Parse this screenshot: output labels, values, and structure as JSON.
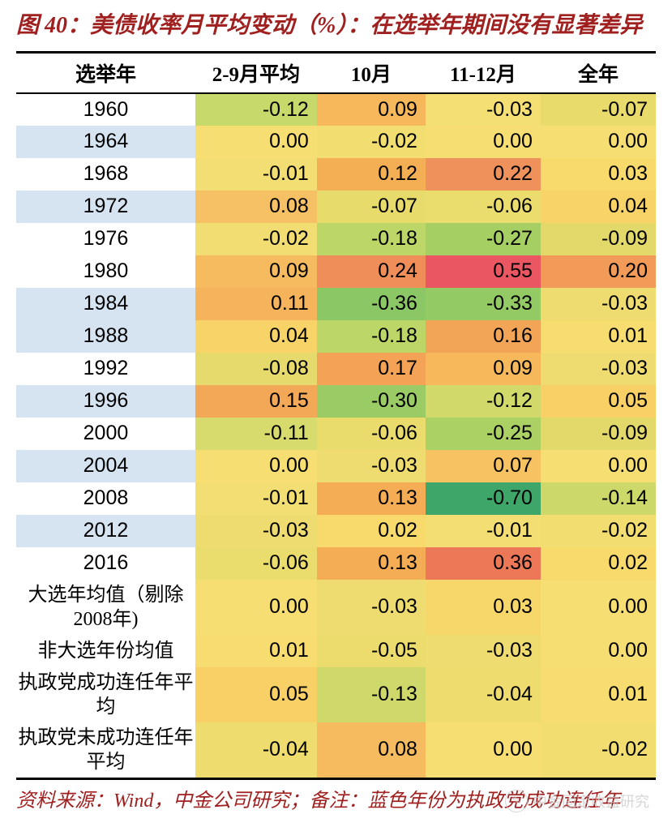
{
  "title": {
    "prefix": "图 40：",
    "text": "美债收率月平均变动（%）：在选举年期间没有显著差异"
  },
  "columns": [
    "选举年",
    "2-9月平均",
    "10月",
    "11-12月",
    "全年"
  ],
  "col_widths": [
    "28%",
    "19%",
    "17%",
    "18%",
    "18%"
  ],
  "header_style": {
    "bg": "#ffffff",
    "text_color": "#000000"
  },
  "palette_note": "heatmap green-yellow-red on data cells; first column alternating blue/white for incumbent re-election years",
  "rows": [
    {
      "label": "1960",
      "label_bg": "#ffffff",
      "cells": [
        {
          "v": "-0.12",
          "bg": "#c7d96a"
        },
        {
          "v": "0.09",
          "bg": "#f6b85a"
        },
        {
          "v": "-0.03",
          "bg": "#f4df74"
        },
        {
          "v": "-0.07",
          "bg": "#e9da6c"
        }
      ]
    },
    {
      "label": "1964",
      "label_bg": "#d6e4f2",
      "cells": [
        {
          "v": "0.00",
          "bg": "#f6de72"
        },
        {
          "v": "-0.02",
          "bg": "#f1dd70"
        },
        {
          "v": "0.00",
          "bg": "#f6de72"
        },
        {
          "v": "0.00",
          "bg": "#f6de72"
        }
      ]
    },
    {
      "label": "1968",
      "label_bg": "#ffffff",
      "cells": [
        {
          "v": "-0.01",
          "bg": "#f3de73"
        },
        {
          "v": "0.12",
          "bg": "#f4af55"
        },
        {
          "v": "0.22",
          "bg": "#ef915a"
        },
        {
          "v": "0.03",
          "bg": "#f8d96c"
        }
      ]
    },
    {
      "label": "1972",
      "label_bg": "#d6e4f2",
      "cells": [
        {
          "v": "0.08",
          "bg": "#f6c064"
        },
        {
          "v": "-0.07",
          "bg": "#e7db6c"
        },
        {
          "v": "-0.06",
          "bg": "#ebdc6e"
        },
        {
          "v": "0.04",
          "bg": "#f8d468"
        }
      ]
    },
    {
      "label": "1976",
      "label_bg": "#ffffff",
      "cells": [
        {
          "v": "-0.02",
          "bg": "#f1dd71"
        },
        {
          "v": "-0.18",
          "bg": "#bdd668"
        },
        {
          "v": "-0.27",
          "bg": "#a6cf63"
        },
        {
          "v": "-0.09",
          "bg": "#e3d96a"
        }
      ]
    },
    {
      "label": "1980",
      "label_bg": "#ffffff",
      "cells": [
        {
          "v": "0.09",
          "bg": "#f6bb5e"
        },
        {
          "v": "0.24",
          "bg": "#ef8e59"
        },
        {
          "v": "0.55",
          "bg": "#ea5662"
        },
        {
          "v": "0.20",
          "bg": "#f29a58"
        }
      ]
    },
    {
      "label": "1984",
      "label_bg": "#d6e4f2",
      "cells": [
        {
          "v": "0.11",
          "bg": "#f5b35b"
        },
        {
          "v": "-0.36",
          "bg": "#8bc764"
        },
        {
          "v": "-0.33",
          "bg": "#94ca64"
        },
        {
          "v": "-0.03",
          "bg": "#efdc70"
        }
      ]
    },
    {
      "label": "1988",
      "label_bg": "#d6e4f2",
      "cells": [
        {
          "v": "0.04",
          "bg": "#f8d468"
        },
        {
          "v": "-0.18",
          "bg": "#bdd668"
        },
        {
          "v": "0.16",
          "bg": "#f3a557"
        },
        {
          "v": "0.01",
          "bg": "#f7dc6f"
        }
      ]
    },
    {
      "label": "1992",
      "label_bg": "#ffffff",
      "cells": [
        {
          "v": "-0.08",
          "bg": "#e5da6b"
        },
        {
          "v": "0.17",
          "bg": "#f3a256"
        },
        {
          "v": "0.09",
          "bg": "#f6b85a"
        },
        {
          "v": "-0.03",
          "bg": "#efdc70"
        }
      ]
    },
    {
      "label": "1996",
      "label_bg": "#d6e4f2",
      "cells": [
        {
          "v": "0.15",
          "bg": "#f3a857"
        },
        {
          "v": "-0.30",
          "bg": "#9acb64"
        },
        {
          "v": "-0.12",
          "bg": "#d2d96b"
        },
        {
          "v": "0.05",
          "bg": "#f8d066"
        }
      ]
    },
    {
      "label": "2000",
      "label_bg": "#ffffff",
      "cells": [
        {
          "v": "-0.11",
          "bg": "#d7da6c"
        },
        {
          "v": "-0.06",
          "bg": "#eadb6d"
        },
        {
          "v": "-0.25",
          "bg": "#abd064"
        },
        {
          "v": "-0.09",
          "bg": "#e3d96a"
        }
      ]
    },
    {
      "label": "2004",
      "label_bg": "#d6e4f2",
      "cells": [
        {
          "v": "0.00",
          "bg": "#f6de72"
        },
        {
          "v": "-0.03",
          "bg": "#efdc70"
        },
        {
          "v": "0.07",
          "bg": "#f7c261"
        },
        {
          "v": "0.00",
          "bg": "#f6de72"
        }
      ]
    },
    {
      "label": "2008",
      "label_bg": "#ffffff",
      "cells": [
        {
          "v": "-0.01",
          "bg": "#f3de73"
        },
        {
          "v": "0.13",
          "bg": "#f4ac55"
        },
        {
          "v": "-0.70",
          "bg": "#3fa66a"
        },
        {
          "v": "-0.14",
          "bg": "#cdd86b"
        }
      ]
    },
    {
      "label": "2012",
      "label_bg": "#d6e4f2",
      "cells": [
        {
          "v": "-0.03",
          "bg": "#efdc70"
        },
        {
          "v": "0.02",
          "bg": "#f7d96c"
        },
        {
          "v": "-0.01",
          "bg": "#f3de73"
        },
        {
          "v": "-0.02",
          "bg": "#f1dd70"
        }
      ]
    },
    {
      "label": "2016",
      "label_bg": "#ffffff",
      "cells": [
        {
          "v": "-0.06",
          "bg": "#ebdc6e"
        },
        {
          "v": "0.13",
          "bg": "#f4ac55"
        },
        {
          "v": "0.36",
          "bg": "#ed7858"
        },
        {
          "v": "0.02",
          "bg": "#f7d96c"
        }
      ]
    },
    {
      "label": "大选年均值（剔除2008年)",
      "label_bg": "#ffffff",
      "summary": true,
      "cells": [
        {
          "v": "0.00",
          "bg": "#f6de72"
        },
        {
          "v": "-0.03",
          "bg": "#efdc70"
        },
        {
          "v": "0.03",
          "bg": "#f8d76a"
        },
        {
          "v": "0.00",
          "bg": "#f6de72"
        }
      ]
    },
    {
      "label": "非大选年份均值",
      "label_bg": "#ffffff",
      "summary": true,
      "cells": [
        {
          "v": "0.01",
          "bg": "#f7dc6f"
        },
        {
          "v": "-0.05",
          "bg": "#ecdc6e"
        },
        {
          "v": "-0.03",
          "bg": "#efdc70"
        },
        {
          "v": "0.00",
          "bg": "#f6de72"
        }
      ]
    },
    {
      "label": "执政党成功连任年平均",
      "label_bg": "#ffffff",
      "summary": true,
      "cells": [
        {
          "v": "0.05",
          "bg": "#f8d066"
        },
        {
          "v": "-0.13",
          "bg": "#cfd96b"
        },
        {
          "v": "-0.04",
          "bg": "#eedc6f"
        },
        {
          "v": "0.01",
          "bg": "#f7dc6f"
        }
      ]
    },
    {
      "label": "执政党未成功连任年平均",
      "label_bg": "#ffffff",
      "summary": true,
      "cells": [
        {
          "v": "-0.04",
          "bg": "#eedc6f"
        },
        {
          "v": "0.08",
          "bg": "#f6bb5e"
        },
        {
          "v": "0.00",
          "bg": "#f6de72"
        },
        {
          "v": "-0.02",
          "bg": "#f1dd70"
        }
      ]
    }
  ],
  "footer": "资料来源：Wind，中金公司研究；备注：蓝色年份为执政党成功连任年",
  "watermark": "中金固定收益研究"
}
